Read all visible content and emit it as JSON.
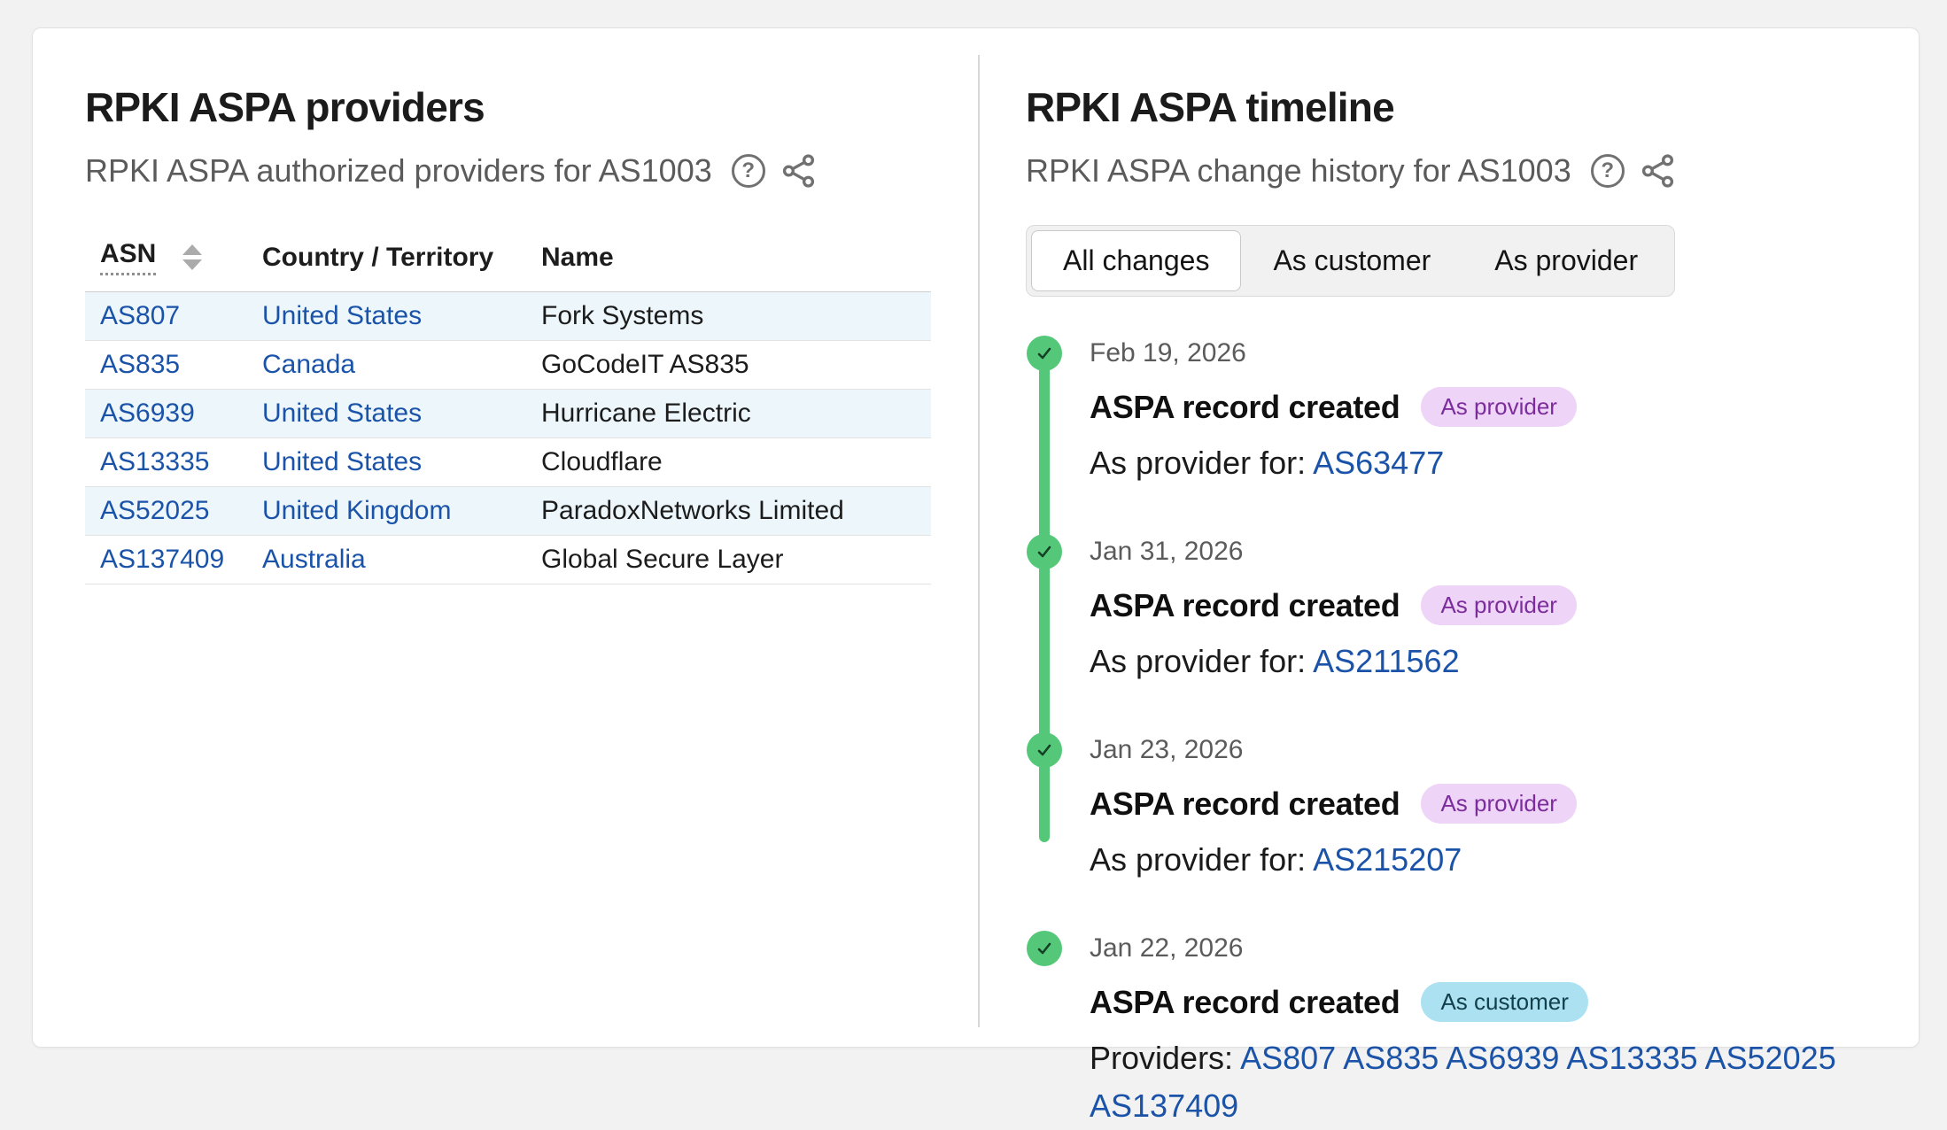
{
  "colors": {
    "green": "#54c878",
    "ring": "#1e7b40",
    "check": "#173f26",
    "link": "#1a53a8",
    "stripe": "#edf7fb",
    "badge_provider_bg": "#eed4f7",
    "badge_provider_text": "#7c2d9c",
    "badge_customer_bg": "#abe1f1",
    "badge_customer_text": "#123f4b"
  },
  "icons": {
    "help_glyph": "?"
  },
  "providers_panel": {
    "title": "RPKI ASPA providers",
    "subtitle": "RPKI ASPA authorized providers for AS1003",
    "table": {
      "columns": [
        "ASN",
        "Country / Territory",
        "Name"
      ],
      "rows": [
        {
          "asn": "AS807",
          "country": "United States",
          "name": "Fork Systems"
        },
        {
          "asn": "AS835",
          "country": "Canada",
          "name": "GoCodeIT AS835"
        },
        {
          "asn": "AS6939",
          "country": "United States",
          "name": "Hurricane Electric"
        },
        {
          "asn": "AS13335",
          "country": "United States",
          "name": "Cloudflare"
        },
        {
          "asn": "AS52025",
          "country": "United Kingdom",
          "name": "ParadoxNetworks Limited"
        },
        {
          "asn": "AS137409",
          "country": "Australia",
          "name": "Global Secure Layer"
        }
      ]
    }
  },
  "timeline_panel": {
    "title": "RPKI ASPA timeline",
    "subtitle": "RPKI ASPA change history for AS1003",
    "active_tab": "All changes",
    "tabs": [
      {
        "label": "All changes",
        "active": true
      },
      {
        "label": "As customer",
        "active": false
      },
      {
        "label": "As provider",
        "active": false
      }
    ],
    "entries": [
      {
        "date": "Feb 19, 2026",
        "event": "ASPA record created",
        "badge": {
          "label": "As provider",
          "type": "provider"
        },
        "detail_label": "As provider for:",
        "links": [
          "AS63477"
        ]
      },
      {
        "date": "Jan 31, 2026",
        "event": "ASPA record created",
        "badge": {
          "label": "As provider",
          "type": "provider"
        },
        "detail_label": "As provider for:",
        "links": [
          "AS211562"
        ]
      },
      {
        "date": "Jan 23, 2026",
        "event": "ASPA record created",
        "badge": {
          "label": "As provider",
          "type": "provider"
        },
        "detail_label": "As provider for:",
        "links": [
          "AS215207"
        ]
      },
      {
        "date": "Jan 22, 2026",
        "event": "ASPA record created",
        "badge": {
          "label": "As customer",
          "type": "customer"
        },
        "detail_label": "Providers:",
        "links": [
          "AS807",
          "AS835",
          "AS6939",
          "AS13335",
          "AS52025",
          "AS137409"
        ]
      }
    ]
  }
}
